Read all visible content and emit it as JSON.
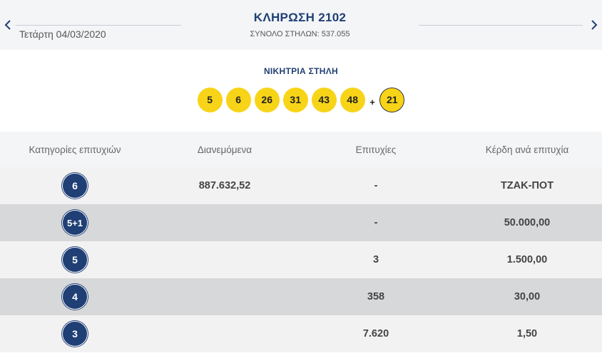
{
  "header": {
    "date": "Τετάρτη 04/03/2020",
    "title": "ΚΛΗΡΩΣΗ 2102",
    "total_label": "ΣΥΝΟΛΟ ΣΤΗΛΩΝ: 537.055",
    "prev_icon": "chevron-left-icon",
    "next_icon": "chevron-right-icon"
  },
  "winning": {
    "title": "ΝΙΚΗΤΡΙΑ ΣΤΗΛΗ",
    "numbers": [
      "5",
      "6",
      "26",
      "31",
      "43",
      "48"
    ],
    "plus": "+",
    "bonus": "21"
  },
  "table": {
    "headers": [
      "Κατηγορίες επιτυχιών",
      "Διανεμόμενα",
      "Επιτυχίες",
      "Κέρδη ανά επιτυχία"
    ],
    "rows": [
      {
        "category": "6",
        "distributed": "887.632,52",
        "winners": "-",
        "prize": "ΤΖΑΚ-ΠΟΤ"
      },
      {
        "category": "5+1",
        "distributed": "",
        "winners": "-",
        "prize": "50.000,00"
      },
      {
        "category": "5",
        "distributed": "",
        "winners": "3",
        "prize": "1.500,00"
      },
      {
        "category": "4",
        "distributed": "",
        "winners": "358",
        "prize": "30,00"
      },
      {
        "category": "3",
        "distributed": "",
        "winners": "7.620",
        "prize": "1,50"
      }
    ]
  },
  "colors": {
    "accent": "#1f3f75",
    "ball": "#f7d417",
    "row_light": "#f2f2f3",
    "row_dark": "#d7d8da"
  }
}
